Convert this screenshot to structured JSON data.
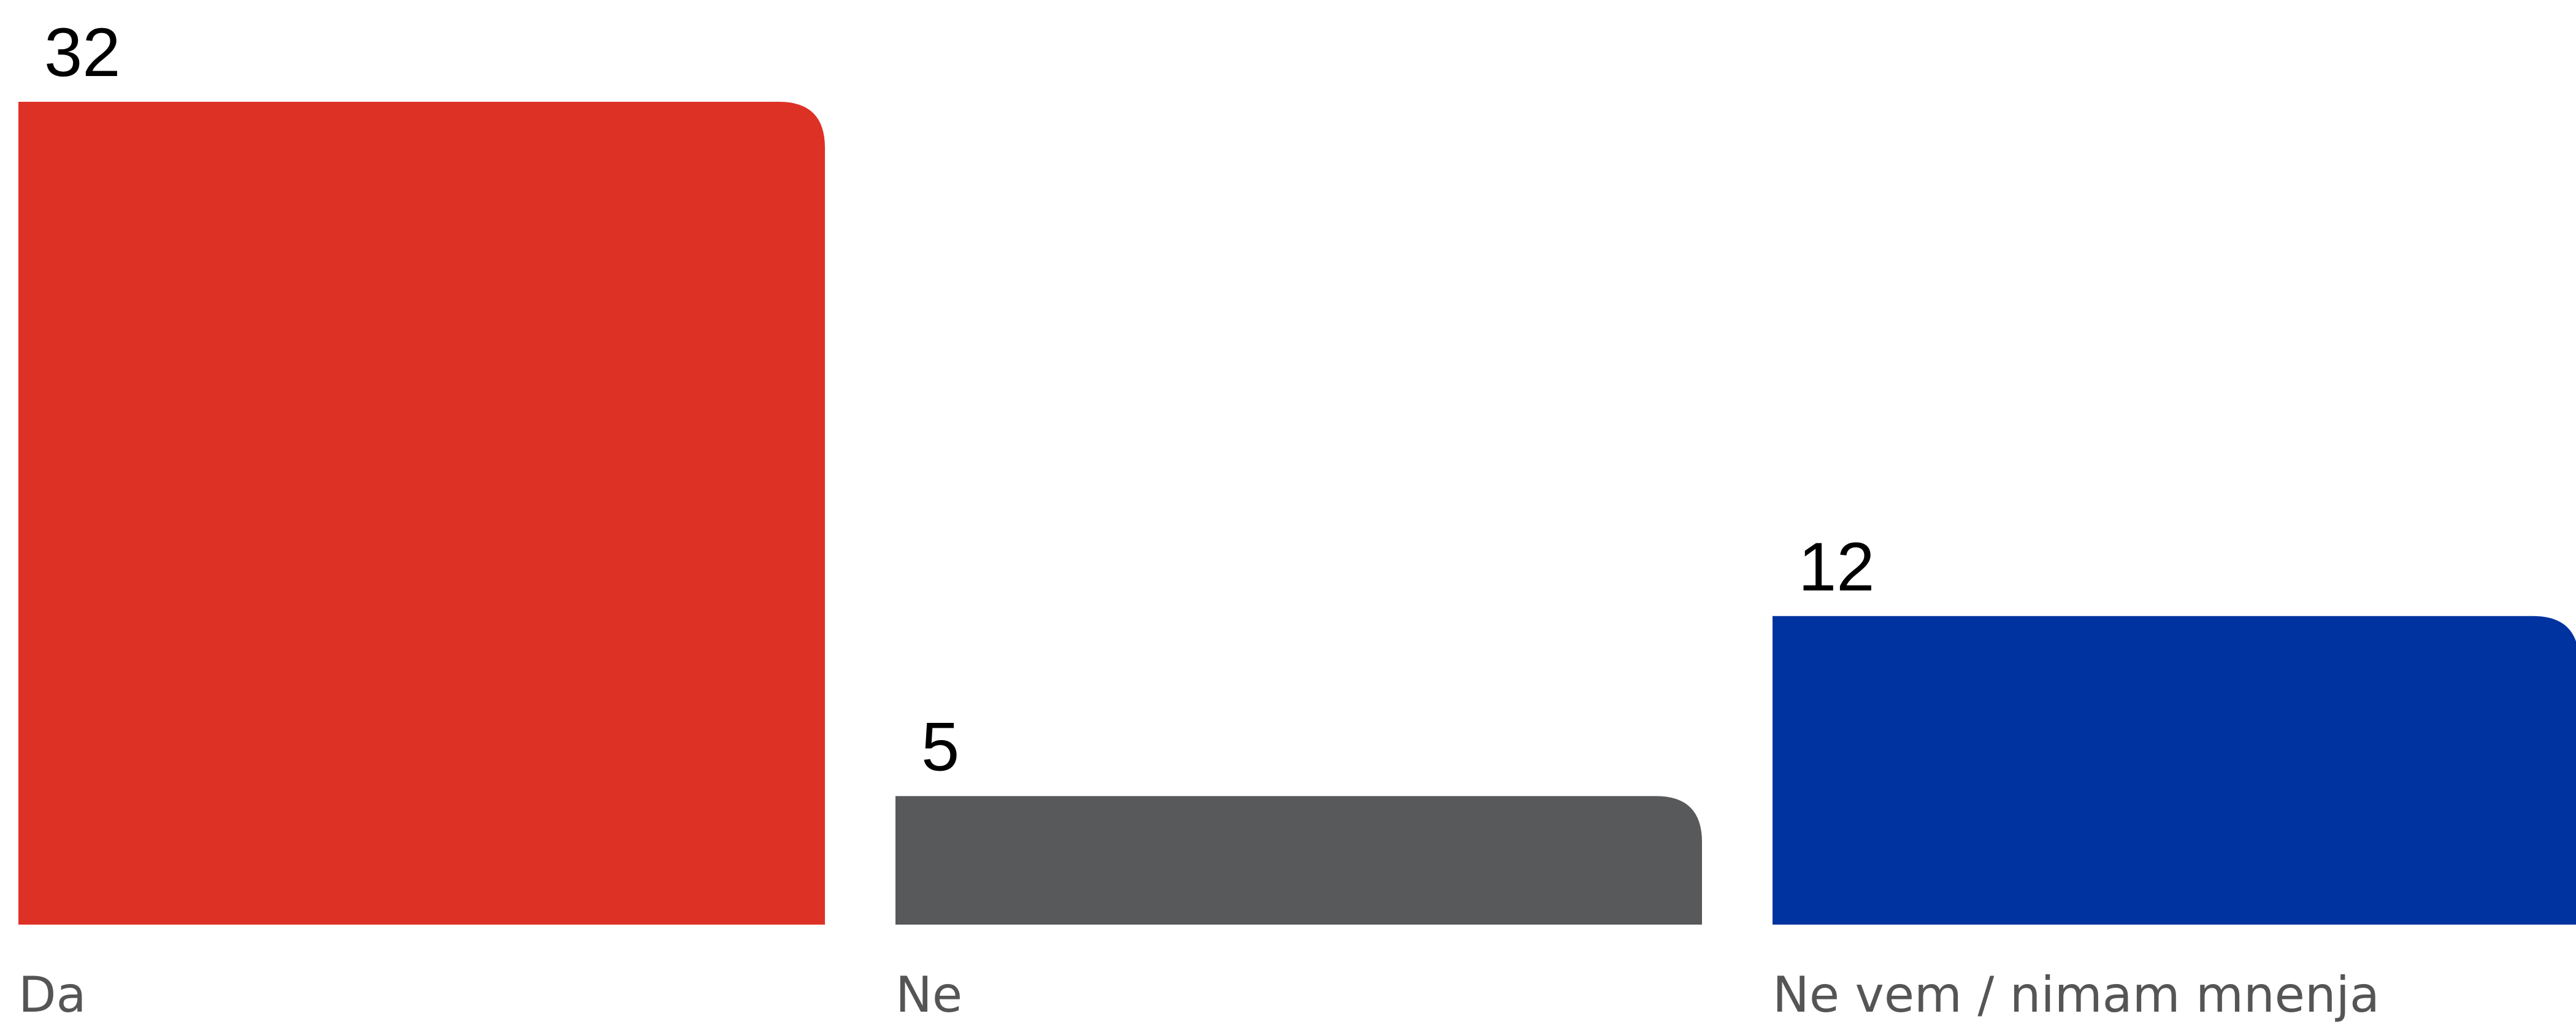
{
  "chart_data": {
    "type": "bar",
    "categories": [
      "Da",
      "Ne",
      "Ne vem / nimam mnenja"
    ],
    "values": [
      32,
      5,
      12
    ],
    "colors": [
      "#de3126",
      "#58595b",
      "#0033a0"
    ],
    "ylim": [
      0,
      32
    ],
    "grid": false,
    "legend": "none",
    "data_labels": true
  }
}
